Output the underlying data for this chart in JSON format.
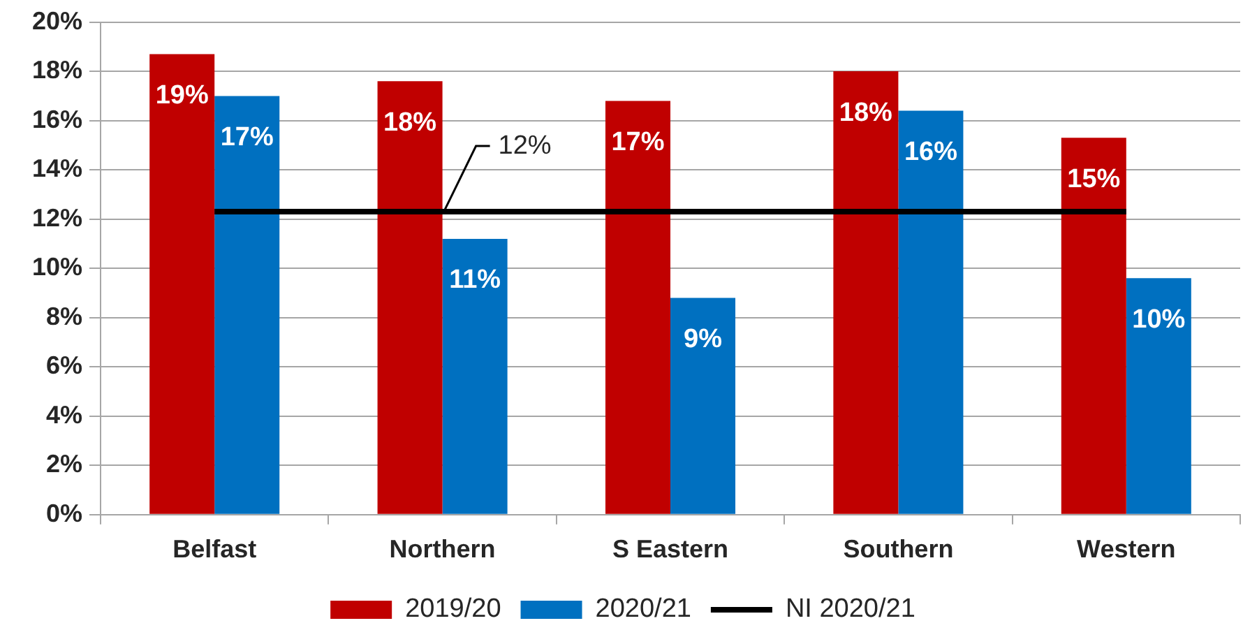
{
  "chart_data": {
    "type": "bar",
    "categories": [
      "Belfast",
      "Northern",
      "S Eastern",
      "Southern",
      "Western"
    ],
    "series": [
      {
        "name": "2019/20",
        "color": "#c00000",
        "values": [
          18.7,
          17.6,
          16.8,
          18.0,
          15.3
        ],
        "value_labels": [
          "19%",
          "18%",
          "17%",
          "18%",
          "15%"
        ]
      },
      {
        "name": "2020/21",
        "color": "#0070c0",
        "values": [
          17.0,
          11.2,
          8.8,
          16.4,
          9.6
        ],
        "value_labels": [
          "17%",
          "11%",
          "9%",
          "16%",
          "10%"
        ]
      },
      {
        "name": "NI 2020/21",
        "type": "line",
        "color": "#000000",
        "values": [
          12.3,
          12.3,
          12.3,
          12.3,
          12.3
        ],
        "value_labels": [
          null,
          "12%",
          null,
          null,
          null
        ]
      }
    ],
    "ylim": [
      0,
      20
    ],
    "yticks": [
      {
        "value": 0,
        "label": "0%"
      },
      {
        "value": 2,
        "label": "2%"
      },
      {
        "value": 4,
        "label": "4%"
      },
      {
        "value": 6,
        "label": "6%"
      },
      {
        "value": 8,
        "label": "8%"
      },
      {
        "value": 10,
        "label": "10%"
      },
      {
        "value": 12,
        "label": "12%"
      },
      {
        "value": 14,
        "label": "14%"
      },
      {
        "value": 16,
        "label": "16%"
      },
      {
        "value": 18,
        "label": "18%"
      },
      {
        "value": 20,
        "label": "20%"
      }
    ],
    "grid": "y",
    "legend": "bottom"
  }
}
